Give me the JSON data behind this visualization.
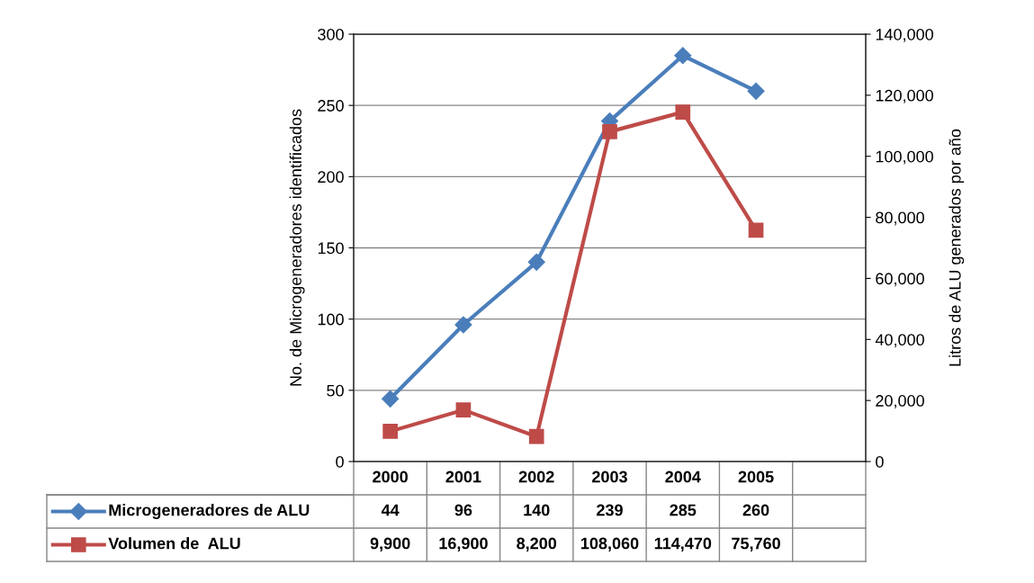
{
  "chart_data": {
    "type": "line",
    "ylabel": "No. de Microgeneradores identificados",
    "y2label": "Litros de ALU generados por año",
    "categories": [
      "2000",
      "2001",
      "2002",
      "2003",
      "2004",
      "2005",
      null
    ],
    "series": [
      {
        "name": "Microgeneradores de ALU",
        "color": "#4a7ebb",
        "marker": "diamond",
        "values": [
          44,
          96,
          140,
          239,
          285,
          260,
          null
        ],
        "value_labels": [
          "44",
          "96",
          "140",
          "239",
          "285",
          "260",
          null
        ]
      },
      {
        "name": "Volumen de  ALU",
        "color": "#be4b48",
        "marker": "square",
        "axis": "y2",
        "values": [
          9900,
          16900,
          8200,
          108060,
          114470,
          75760,
          null
        ],
        "value_labels": [
          "9,900",
          "16,900",
          "8,200",
          "108,060",
          "114,470",
          "75,760",
          null
        ]
      }
    ],
    "ylim": [
      0,
      300
    ],
    "yticks": [
      0,
      50,
      100,
      150,
      200,
      250,
      300
    ],
    "y2lim": [
      0,
      140000
    ],
    "y2ticks": [
      {
        "value": 0,
        "label": "0"
      },
      {
        "value": 20000,
        "label": "20,000"
      },
      {
        "value": 40000,
        "label": "40,000"
      },
      {
        "value": 60000,
        "label": "60,000"
      },
      {
        "value": 80000,
        "label": "80,000"
      },
      {
        "value": 100000,
        "label": "100,000"
      },
      {
        "value": 120000,
        "label": "120,000"
      },
      {
        "value": 140000,
        "label": "140,000"
      }
    ],
    "grid": "y",
    "legend": "bottom left",
    "line_style": "solid"
  }
}
